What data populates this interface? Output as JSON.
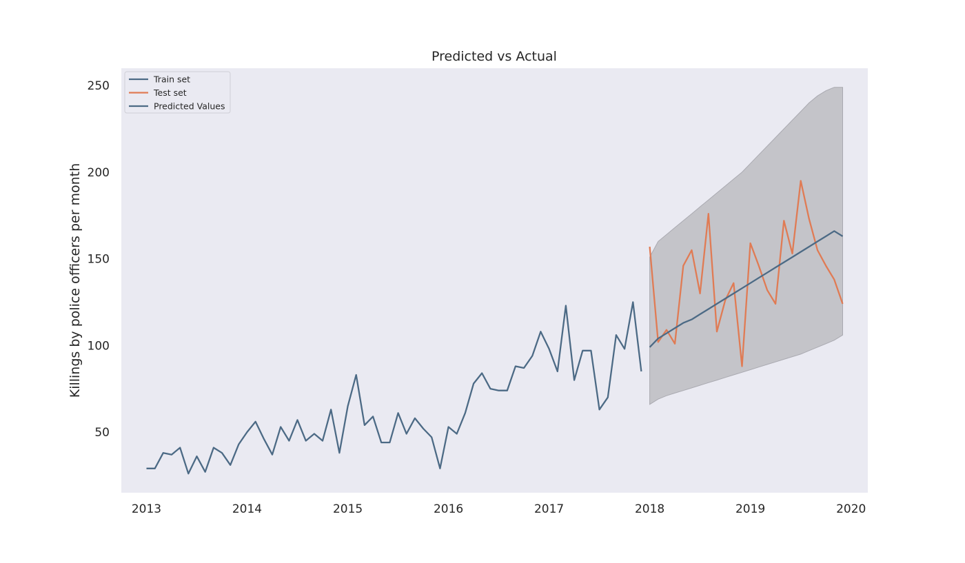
{
  "chart_data": {
    "type": "line",
    "title": "Predicted vs Actual",
    "xlabel": "",
    "ylabel": "Killings by police officers per month",
    "xlim": [
      "2012-10",
      "2020-03"
    ],
    "ylim": [
      15,
      260
    ],
    "x_ticks": [
      "2013",
      "2014",
      "2015",
      "2016",
      "2017",
      "2018",
      "2019",
      "2020"
    ],
    "y_ticks": [
      50,
      100,
      150,
      200,
      250
    ],
    "grid": false,
    "legend_position": "top-left",
    "colors": {
      "train": "#4c6a85",
      "test": "#e07b54",
      "predicted": "#4c6a85",
      "confidence_band": "#c4c4c9",
      "plot_background": "#eaeaf2"
    },
    "series": [
      {
        "name": "Train set",
        "x": [
          "2013-01",
          "2013-02",
          "2013-03",
          "2013-04",
          "2013-05",
          "2013-06",
          "2013-07",
          "2013-08",
          "2013-09",
          "2013-10",
          "2013-11",
          "2013-12",
          "2014-01",
          "2014-02",
          "2014-03",
          "2014-04",
          "2014-05",
          "2014-06",
          "2014-07",
          "2014-08",
          "2014-09",
          "2014-10",
          "2014-11",
          "2014-12",
          "2015-01",
          "2015-02",
          "2015-03",
          "2015-04",
          "2015-05",
          "2015-06",
          "2015-07",
          "2015-08",
          "2015-09",
          "2015-10",
          "2015-11",
          "2015-12",
          "2016-01",
          "2016-02",
          "2016-03",
          "2016-04",
          "2016-05",
          "2016-06",
          "2016-07",
          "2016-08",
          "2016-09",
          "2016-10",
          "2016-11",
          "2016-12",
          "2017-01",
          "2017-02",
          "2017-03",
          "2017-04",
          "2017-05",
          "2017-06",
          "2017-07",
          "2017-08",
          "2017-09",
          "2017-10",
          "2017-11",
          "2017-12"
        ],
        "values": [
          29,
          29,
          38,
          37,
          41,
          26,
          36,
          27,
          41,
          38,
          31,
          43,
          50,
          56,
          46,
          37,
          53,
          45,
          57,
          45,
          49,
          45,
          63,
          38,
          65,
          83,
          54,
          59,
          44,
          44,
          61,
          49,
          58,
          52,
          47,
          29,
          53,
          49,
          61,
          78,
          84,
          75,
          74,
          74,
          88,
          87,
          94,
          108,
          98,
          85,
          123,
          80,
          97,
          97,
          63,
          70,
          106,
          98,
          125,
          85
        ]
      },
      {
        "name": "Test set",
        "x": [
          "2018-01",
          "2018-02",
          "2018-03",
          "2018-04",
          "2018-05",
          "2018-06",
          "2018-07",
          "2018-08",
          "2018-09",
          "2018-10",
          "2018-11",
          "2018-12",
          "2019-01",
          "2019-02",
          "2019-03",
          "2019-04",
          "2019-05",
          "2019-06",
          "2019-07",
          "2019-08",
          "2019-09",
          "2019-10",
          "2019-11",
          "2019-12"
        ],
        "values": [
          157,
          102,
          109,
          101,
          146,
          155,
          130,
          176,
          108,
          126,
          136,
          88,
          159,
          146,
          132,
          124,
          172,
          153,
          195,
          173,
          155,
          146,
          138,
          124
        ]
      },
      {
        "name": "Predicted Values",
        "x": [
          "2018-01",
          "2018-02",
          "2018-03",
          "2018-04",
          "2018-05",
          "2018-06",
          "2018-07",
          "2018-08",
          "2018-09",
          "2018-10",
          "2018-11",
          "2018-12",
          "2019-01",
          "2019-02",
          "2019-03",
          "2019-04",
          "2019-05",
          "2019-06",
          "2019-07",
          "2019-08",
          "2019-09",
          "2019-10",
          "2019-11",
          "2019-12"
        ],
        "values": [
          99,
          104,
          107,
          110,
          113,
          115,
          118,
          121,
          124,
          127,
          130,
          133,
          136,
          139,
          142,
          145,
          148,
          151,
          154,
          157,
          160,
          163,
          166,
          163
        ],
        "lower": [
          66,
          69,
          71,
          72.5,
          74,
          75.5,
          77,
          78.5,
          80,
          81.5,
          83,
          84.5,
          86,
          87.5,
          89,
          90.5,
          92,
          93.5,
          95,
          97,
          99,
          101,
          103,
          106
        ],
        "upper": [
          151,
          160,
          164,
          168,
          172,
          176,
          180,
          184,
          188,
          192,
          196,
          200,
          205,
          210,
          215,
          220,
          225,
          230,
          235,
          240,
          244,
          247,
          249,
          249
        ]
      }
    ]
  }
}
